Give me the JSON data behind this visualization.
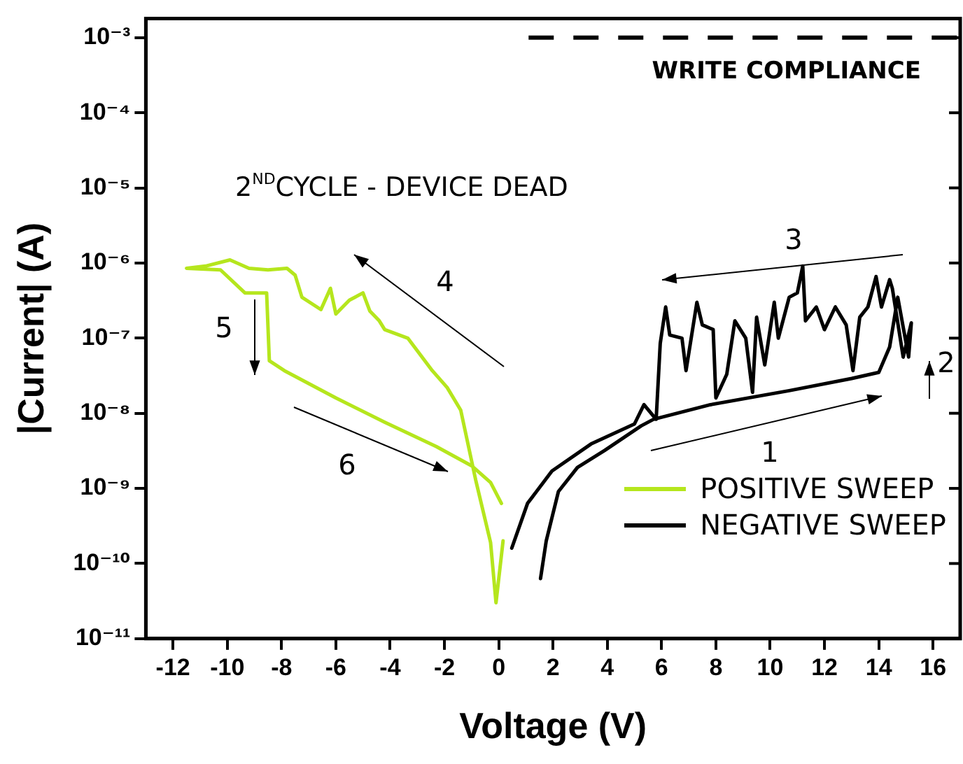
{
  "chart_data": {
    "type": "line",
    "xlabel": "Voltage (V)",
    "ylabel": "|Current| (A)",
    "log": "y",
    "xlim": [
      -13,
      17
    ],
    "xticks": [
      -12,
      -10,
      -8,
      -6,
      -4,
      -2,
      0,
      2,
      4,
      6,
      8,
      10,
      12,
      14,
      16
    ],
    "ylim": [
      1e-11,
      0.0018
    ],
    "yticks": [
      {
        "value": 1e-11,
        "label": "10⁻¹¹"
      },
      {
        "value": 1e-10,
        "label": "10⁻¹⁰"
      },
      {
        "value": 1e-09,
        "label": "10⁻⁹"
      },
      {
        "value": 1e-08,
        "label": "10⁻⁸"
      },
      {
        "value": 1e-07,
        "label": "10⁻⁷"
      },
      {
        "value": 1e-06,
        "label": "10⁻⁶"
      },
      {
        "value": 1e-05,
        "label": "10⁻⁵"
      },
      {
        "value": 0.0001,
        "label": "10⁻⁴"
      },
      {
        "value": 0.001,
        "label": "10⁻³"
      }
    ],
    "grid": false,
    "legend": "bottom right",
    "marker": "none",
    "line_style": "solid",
    "series": [
      {
        "name": "POSITIVE SWEEP",
        "color": "#b5e61d",
        "x": [
          0.16,
          -0.1,
          -0.3,
          -0.85,
          -1.4,
          -1.9,
          -2.45,
          -3.35,
          -4.2,
          -4.4,
          -4.75,
          -5.0,
          -5.5,
          -6.0,
          -6.2,
          -6.55,
          -7.25,
          -7.5,
          -7.8,
          -8.5,
          -9.2,
          -9.9,
          -10.8,
          -11.5,
          -10.25,
          -9.35,
          -8.55,
          -8.45,
          -7.9,
          -6.0,
          -4.2,
          -2.3,
          -1.0,
          -0.3,
          0.1
        ],
        "values": [
          2e-10,
          3e-11,
          1.9e-10,
          1.3e-09,
          1.1e-08,
          2.2e-08,
          3.7e-08,
          1e-07,
          1.3e-07,
          1.7e-07,
          2.3e-07,
          4e-07,
          3.2e-07,
          2.1e-07,
          4.6e-07,
          2.4e-07,
          3.5e-07,
          6.9e-07,
          8.5e-07,
          8.1e-07,
          8.5e-07,
          1.1e-06,
          9.1e-07,
          8.5e-07,
          8.1e-07,
          4e-07,
          4e-07,
          5e-08,
          3.7e-08,
          1.6e-08,
          7.6e-09,
          3.6e-09,
          2e-09,
          1.2e-09,
          6.3e-10
        ]
      },
      {
        "name": "NEGATIVE SWEEP",
        "color": "#000000",
        "x": [
          1.54,
          1.75,
          2.2,
          2.9,
          3.9,
          5.25,
          5.7,
          7.8,
          10.7,
          13.0,
          14.0,
          14.4,
          14.7,
          15.1,
          15.2,
          14.9,
          14.5,
          14.4,
          14.1,
          13.9,
          13.6,
          13.3,
          13.05,
          12.8,
          12.4,
          12.0,
          11.7,
          11.3,
          11.2,
          11.0,
          10.7,
          10.3,
          10.15,
          9.8,
          9.5,
          9.35,
          9.1,
          8.7,
          8.4,
          8.0,
          7.9,
          7.5,
          7.3,
          6.9,
          6.75,
          6.3,
          6.15,
          5.95,
          5.8,
          5.35,
          5.0,
          3.4,
          1.96,
          1.06,
          0.48
        ],
        "values": [
          6.3e-11,
          2e-10,
          9.1e-10,
          1.9e-09,
          3.2e-09,
          6.8e-09,
          8.3e-09,
          1.3e-08,
          2e-08,
          2.9e-08,
          3.5e-08,
          7.6e-08,
          3.5e-07,
          5.6e-08,
          1.6e-07,
          5.6e-08,
          4.6e-07,
          6e-07,
          2.6e-07,
          6.6e-07,
          2.6e-07,
          1.9e-07,
          3.7e-08,
          1.5e-07,
          2.6e-07,
          1.3e-07,
          2.6e-07,
          1.7e-07,
          9.1e-07,
          4e-07,
          3.5e-07,
          1e-07,
          3e-07,
          4.4e-08,
          1.9e-07,
          1.9e-08,
          1e-07,
          1.7e-07,
          3.3e-08,
          1.6e-08,
          1.3e-07,
          1.5e-07,
          3e-07,
          3.7e-08,
          1e-07,
          1.1e-07,
          2.6e-07,
          8.5e-08,
          8.3e-09,
          1.3e-08,
          7.2e-09,
          3.9e-09,
          1.7e-09,
          6.3e-10,
          1.6e-10
        ]
      }
    ],
    "ref_lines": [
      {
        "axis": "y",
        "value": 0.001,
        "label": "WRITE COMPLIANCE",
        "color": "#000000",
        "line_style": "dashed"
      }
    ],
    "annotations": [
      "2$^{ND}$CYCLE - DEVICE DEAD",
      "1",
      "2",
      "3",
      "4",
      "5",
      "6"
    ]
  }
}
